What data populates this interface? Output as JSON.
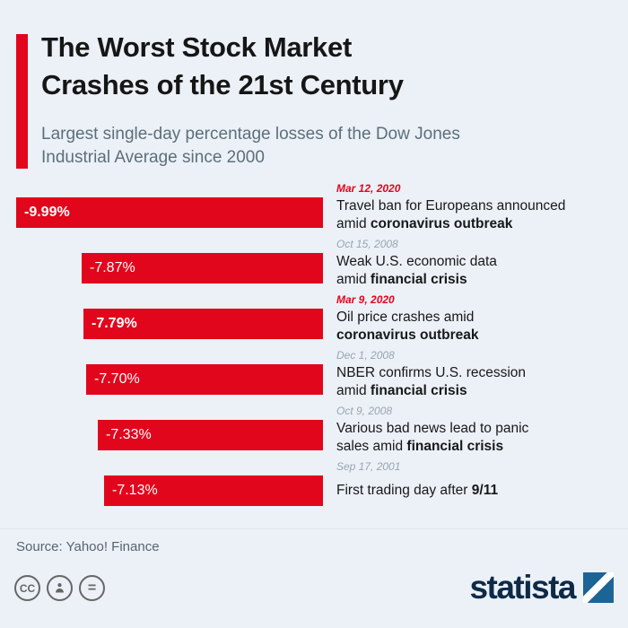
{
  "header": {
    "title_lines": [
      "The Worst Stock Market",
      "Crashes of the 21st Century"
    ],
    "subtitle_lines": [
      "Largest single-day percentage losses of the Dow Jones",
      "Industrial Average since 2000"
    ]
  },
  "colors": {
    "bar": "#e2061c",
    "background": "#ebf1f6",
    "date_highlight": "#e2061c",
    "date_muted": "#9aa5ae",
    "logo_navy": "#0d2a47",
    "logo_blue": "#1c6496"
  },
  "chart_data": {
    "type": "bar",
    "orientation": "horizontal",
    "title": "The Worst Stock Market Crashes of the 21st Century",
    "subtitle": "Largest single-day percentage losses of the Dow Jones Industrial Average since 2000",
    "unit": "%",
    "xlim": [
      -10.5,
      0
    ],
    "max_value": 9.99,
    "categories": [
      "Mar 12, 2020",
      "Oct 15, 2008",
      "Mar 9, 2020",
      "Dec 1, 2008",
      "Oct 9, 2008",
      "Sep 17, 2001"
    ],
    "values": [
      -9.99,
      -7.87,
      -7.79,
      -7.7,
      -7.33,
      -7.13
    ],
    "bars": [
      {
        "value": 9.99,
        "display": "-9.99%",
        "date": "Mar 12, 2020",
        "highlight": true,
        "description_lines": [
          [
            {
              "t": "Travel ban for Europeans announced"
            }
          ],
          [
            {
              "t": "amid "
            },
            {
              "t": "coronavirus outbreak",
              "b": true
            }
          ]
        ]
      },
      {
        "value": 7.87,
        "display": "-7.87%",
        "date": "Oct 15, 2008",
        "highlight": false,
        "description_lines": [
          [
            {
              "t": "Weak U.S. economic data"
            }
          ],
          [
            {
              "t": "amid "
            },
            {
              "t": "financial crisis",
              "b": true
            }
          ]
        ]
      },
      {
        "value": 7.79,
        "display": "-7.79%",
        "date": "Mar 9, 2020",
        "highlight": true,
        "description_lines": [
          [
            {
              "t": "Oil price crashes amid"
            }
          ],
          [
            {
              "t": "coronavirus outbreak",
              "b": true
            }
          ]
        ]
      },
      {
        "value": 7.7,
        "display": "-7.70%",
        "date": "Dec 1, 2008",
        "highlight": false,
        "description_lines": [
          [
            {
              "t": "NBER confirms U.S. recession"
            }
          ],
          [
            {
              "t": "amid "
            },
            {
              "t": "financial crisis",
              "b": true
            }
          ]
        ]
      },
      {
        "value": 7.33,
        "display": "-7.33%",
        "date": "Oct 9, 2008",
        "highlight": false,
        "description_lines": [
          [
            {
              "t": "Various bad news lead to panic"
            }
          ],
          [
            {
              "t": "sales amid "
            },
            {
              "t": "financial crisis",
              "b": true
            }
          ]
        ]
      },
      {
        "value": 7.13,
        "display": "-7.13%",
        "date": "Sep 17, 2001",
        "highlight": false,
        "description_lines": [
          [
            {
              "t": "First trading day after "
            },
            {
              "t": "9/11",
              "b": true
            }
          ]
        ]
      }
    ]
  },
  "footer": {
    "source": "Source: Yahoo! Finance",
    "logo_text": "statista",
    "license_icons": [
      {
        "name": "creative-commons-icon",
        "glyph": "CC"
      },
      {
        "name": "attribution-icon",
        "glyph": "person"
      },
      {
        "name": "no-derivatives-icon",
        "glyph": "="
      }
    ]
  }
}
